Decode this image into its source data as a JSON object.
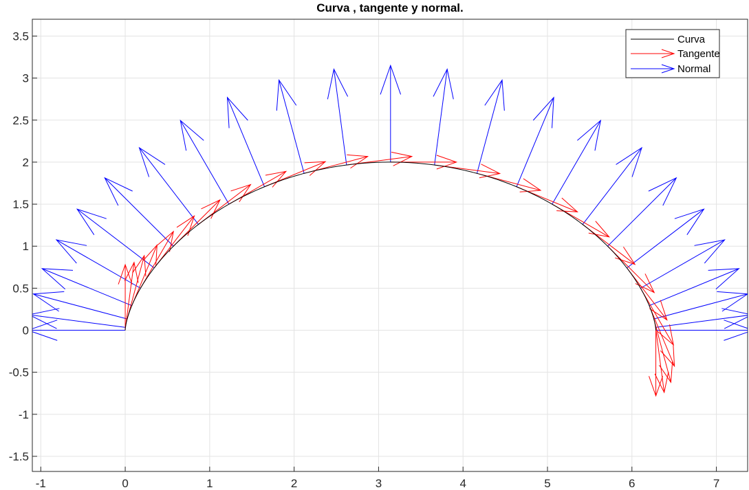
{
  "chart_data": {
    "type": "line",
    "title": "Curva , tangente y normal.",
    "xlabel": "",
    "ylabel": "",
    "xlim": [
      -1.1,
      7.37
    ],
    "ylim": [
      -1.68,
      3.7
    ],
    "xticks": [
      -1,
      0,
      1,
      2,
      3,
      4,
      5,
      6,
      7
    ],
    "yticks": [
      -1.5,
      -1,
      -0.5,
      0,
      0.5,
      1,
      1.5,
      2,
      2.5,
      3,
      3.5
    ],
    "grid": true,
    "legend_position": "top-right",
    "curve_parameter": {
      "t_start": 0,
      "t_end": 6.2832,
      "samples": 25
    },
    "series": [
      {
        "name": "Curva",
        "color": "#000000",
        "kind": "curve"
      },
      {
        "name": "Tangente",
        "color": "#ff0000",
        "kind": "tangent-arrows"
      },
      {
        "name": "Normal",
        "color": "#0000ff",
        "kind": "normal-arrows"
      }
    ]
  }
}
